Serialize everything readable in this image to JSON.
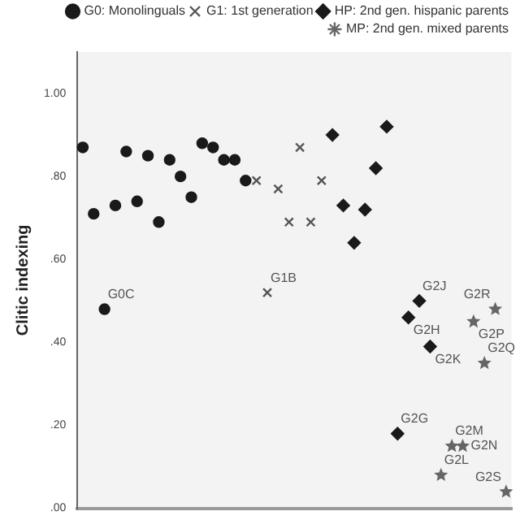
{
  "chart_data": {
    "type": "scatter",
    "ylabel": "Clitic indexing",
    "categories": [
      null,
      null,
      null,
      null,
      null,
      null,
      null,
      null,
      null,
      null,
      null,
      null,
      null,
      null,
      null,
      null,
      null,
      null,
      null,
      null,
      null,
      null,
      null,
      null,
      null,
      null,
      null,
      null,
      null,
      null,
      null,
      null,
      null,
      null,
      null,
      null,
      null,
      null,
      null,
      null
    ],
    "series": [
      {
        "name": "G0: Monolinguals",
        "color": "#1a1a1a",
        "marker": "circle",
        "values": [
          0.87,
          0.71,
          0.48,
          0.73,
          0.86,
          0.74,
          0.85,
          0.69,
          0.84,
          0.8,
          0.75,
          0.88,
          0.87,
          0.84,
          0.84,
          0.79,
          null,
          null,
          null,
          null,
          null,
          null,
          null,
          null,
          null,
          null,
          null,
          null,
          null,
          null,
          null,
          null,
          null,
          null,
          null,
          null,
          null,
          null,
          null,
          null
        ],
        "value_labels": [
          null,
          null,
          "G0C",
          null,
          null,
          null,
          null,
          null,
          null,
          null,
          null,
          null,
          null,
          null,
          null,
          null,
          null,
          null,
          null,
          null,
          null,
          null,
          null,
          null,
          null,
          null,
          null,
          null,
          null,
          null,
          null,
          null,
          null,
          null,
          null,
          null,
          null,
          null,
          null,
          null
        ]
      },
      {
        "name": "G1: 1st generation",
        "color": "#555555",
        "marker": "cross",
        "values": [
          null,
          null,
          null,
          null,
          null,
          null,
          null,
          null,
          null,
          null,
          null,
          null,
          null,
          null,
          null,
          null,
          0.79,
          0.52,
          0.77,
          0.69,
          0.87,
          0.69,
          0.79,
          null,
          null,
          null,
          null,
          null,
          null,
          null,
          null,
          null,
          null,
          null,
          null,
          null,
          null,
          null,
          null,
          null
        ],
        "value_labels": [
          null,
          null,
          null,
          null,
          null,
          null,
          null,
          null,
          null,
          null,
          null,
          null,
          null,
          null,
          null,
          null,
          null,
          "G1B",
          null,
          null,
          null,
          null,
          null,
          null,
          null,
          null,
          null,
          null,
          null,
          null,
          null,
          null,
          null,
          null,
          null,
          null,
          null,
          null,
          null,
          null
        ]
      },
      {
        "name": "HP: 2nd gen. hispanic parents",
        "color": "#1a1a1a",
        "marker": "diamond",
        "values": [
          null,
          null,
          null,
          null,
          null,
          null,
          null,
          null,
          null,
          null,
          null,
          null,
          null,
          null,
          null,
          null,
          null,
          null,
          null,
          null,
          null,
          null,
          null,
          0.9,
          0.73,
          0.64,
          0.72,
          0.82,
          0.92,
          0.18,
          0.46,
          0.5,
          0.39,
          null,
          null,
          null,
          null,
          null,
          null,
          null
        ],
        "value_labels": [
          null,
          null,
          null,
          null,
          null,
          null,
          null,
          null,
          null,
          null,
          null,
          null,
          null,
          null,
          null,
          null,
          null,
          null,
          null,
          null,
          null,
          null,
          null,
          null,
          null,
          null,
          null,
          null,
          null,
          "G2G",
          "G2H",
          "G2J",
          "G2K",
          null,
          null,
          null,
          null,
          null,
          null,
          null
        ]
      },
      {
        "name": "MP: 2nd gen. mixed parents",
        "color": "#666666",
        "marker": "star",
        "values": [
          null,
          null,
          null,
          null,
          null,
          null,
          null,
          null,
          null,
          null,
          null,
          null,
          null,
          null,
          null,
          null,
          null,
          null,
          null,
          null,
          null,
          null,
          null,
          null,
          null,
          null,
          null,
          null,
          null,
          null,
          null,
          null,
          null,
          0.08,
          0.15,
          0.15,
          0.45,
          0.35,
          0.48,
          0.04
        ],
        "value_labels": [
          null,
          null,
          null,
          null,
          null,
          null,
          null,
          null,
          null,
          null,
          null,
          null,
          null,
          null,
          null,
          null,
          null,
          null,
          null,
          null,
          null,
          null,
          null,
          null,
          null,
          null,
          null,
          null,
          null,
          null,
          null,
          null,
          null,
          "G2L",
          "G2M",
          "G2N",
          "G2P",
          "G2Q",
          "G2R",
          "G2S"
        ]
      }
    ],
    "ylim": [
      0,
      1.1
    ],
    "yticks": [
      {
        "value": 0,
        "label": ".00"
      },
      {
        "value": 0.2,
        "label": ".20"
      },
      {
        "value": 0.4,
        "label": ".40"
      },
      {
        "value": 0.6,
        "label": ".60"
      },
      {
        "value": 0.8,
        "label": ".80"
      },
      {
        "value": 1,
        "label": "1.00"
      }
    ],
    "tick_labels": "y",
    "grid": false,
    "legend": "top right"
  }
}
